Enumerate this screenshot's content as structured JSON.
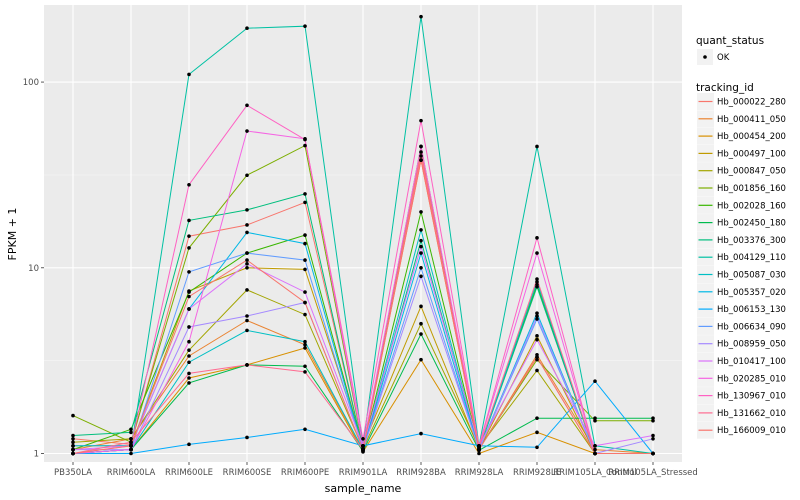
{
  "chart_data": {
    "type": "line",
    "xlabel": "sample_name",
    "ylabel": "FPKM + 1",
    "y_scale": "log10",
    "ylim": [
      0.9,
      260
    ],
    "y_ticks": [
      1,
      10,
      100
    ],
    "y_tick_labels": [
      "1",
      "10",
      "100"
    ],
    "grid": true,
    "legend_position": "right",
    "categories": [
      "PB350LA",
      "RRIM600LA",
      "RRIM600LE",
      "RRIM600SE",
      "RRIM600PE",
      "RRIM901LA",
      "RRIM928BA",
      "RRIM928LA",
      "RRIM928LE",
      "RRIM105LA_Control",
      "RRIM105LA_Stressed"
    ],
    "category_labels": [
      "PB350LA",
      "RRIM600LA",
      "RRIM600LE",
      "RRIM600SE",
      "RRIM600PE",
      "RRIM901LA",
      "RRIM928BA",
      "RRIM928LA",
      "RRIM928LE",
      "RRIM105LA_Control",
      "RRIM105LA_Stressed"
    ],
    "quant_status_legend": {
      "title": "quant_status",
      "items": [
        "OK"
      ]
    },
    "series_legend_title": "tracking_id",
    "series": [
      {
        "name": "Hb_000022_280",
        "color": "#F8766D",
        "values": [
          1.2,
          1.12,
          14.8,
          17.0,
          22.5,
          1.05,
          42.0,
          1.05,
          3.3,
          1.0,
          1.0
        ]
      },
      {
        "name": "Hb_000411_050",
        "color": "#EA8331",
        "values": [
          1.05,
          1.2,
          3.35,
          5.2,
          3.85,
          1.04,
          38.0,
          1.05,
          3.4,
          1.05,
          1.0
        ]
      },
      {
        "name": "Hb_000454_200",
        "color": "#D89000",
        "values": [
          1.0,
          1.05,
          2.55,
          3.0,
          3.7,
          1.02,
          3.2,
          1.0,
          1.3,
          1.0,
          1.0
        ]
      },
      {
        "name": "Hb_000497_100",
        "color": "#C09B00",
        "values": [
          1.1,
          1.1,
          7.5,
          10.0,
          9.8,
          1.1,
          6.2,
          1.05,
          4.3,
          1.0,
          1.0
        ]
      },
      {
        "name": "Hb_000847_050",
        "color": "#A3A500",
        "values": [
          1.15,
          1.2,
          3.6,
          7.6,
          5.6,
          1.06,
          5.0,
          1.08,
          2.8,
          1.0,
          1.0
        ]
      },
      {
        "name": "Hb_001856_160",
        "color": "#7CAE00",
        "values": [
          1.6,
          1.15,
          12.8,
          31.5,
          45.5,
          1.07,
          45.0,
          1.06,
          3.2,
          1.5,
          1.5
        ]
      },
      {
        "name": "Hb_002028_160",
        "color": "#39B600",
        "values": [
          1.05,
          1.35,
          7.4,
          12.0,
          15.0,
          1.06,
          20.0,
          1.06,
          8.1,
          1.0,
          1.0
        ]
      },
      {
        "name": "Hb_002450_180",
        "color": "#00BB4E",
        "values": [
          1.0,
          1.05,
          2.4,
          3.0,
          2.95,
          1.03,
          4.4,
          1.04,
          1.55,
          1.55,
          1.55
        ]
      },
      {
        "name": "Hb_003376_300",
        "color": "#00BF7D",
        "values": [
          1.25,
          1.3,
          18.0,
          20.5,
          25.0,
          1.05,
          14.0,
          1.05,
          7.9,
          1.0,
          1.0
        ]
      },
      {
        "name": "Hb_004129_110",
        "color": "#00C1A3",
        "values": [
          1.0,
          1.05,
          110.0,
          195.0,
          200.0,
          1.1,
          225.0,
          1.1,
          45.0,
          1.1,
          1.0
        ]
      },
      {
        "name": "Hb_005087_030",
        "color": "#00BFC4",
        "values": [
          1.0,
          1.05,
          3.1,
          4.6,
          4.0,
          1.05,
          16.0,
          1.05,
          8.4,
          1.0,
          1.0
        ]
      },
      {
        "name": "Hb_005357_020",
        "color": "#00B8E5",
        "values": [
          1.1,
          1.1,
          6.0,
          15.5,
          13.5,
          1.05,
          12.0,
          1.05,
          5.7,
          1.0,
          1.0
        ]
      },
      {
        "name": "Hb_006153_130",
        "color": "#00ABFD",
        "values": [
          1.0,
          1.0,
          1.12,
          1.22,
          1.35,
          1.1,
          1.28,
          1.1,
          1.08,
          2.45,
          1.0
        ]
      },
      {
        "name": "Hb_006634_090",
        "color": "#619CFF",
        "values": [
          1.0,
          1.05,
          9.5,
          12.0,
          11.0,
          1.05,
          10.0,
          1.05,
          5.3,
          1.0,
          1.0
        ]
      },
      {
        "name": "Hb_008959_050",
        "color": "#A58AFF",
        "values": [
          1.05,
          1.05,
          4.8,
          5.5,
          6.5,
          1.05,
          9.0,
          1.05,
          5.5,
          1.0,
          1.2
        ]
      },
      {
        "name": "Hb_010417_100",
        "color": "#DB72FB",
        "values": [
          1.05,
          1.1,
          6.0,
          10.5,
          7.4,
          1.1,
          13.0,
          1.1,
          4.1,
          1.1,
          1.25
        ]
      },
      {
        "name": "Hb_020285_010",
        "color": "#F564E3",
        "values": [
          1.0,
          1.05,
          4.0,
          54.5,
          49.5,
          1.1,
          45.0,
          1.1,
          12.0,
          1.0,
          1.0
        ]
      },
      {
        "name": "Hb_130967_010",
        "color": "#FF61C3",
        "values": [
          1.0,
          1.1,
          28.0,
          75.0,
          49.0,
          1.2,
          62.0,
          1.1,
          14.5,
          1.0,
          1.0
        ]
      },
      {
        "name": "Hb_131662_010",
        "color": "#FF6C91",
        "values": [
          1.0,
          1.15,
          2.7,
          3.0,
          2.75,
          1.05,
          40.0,
          1.08,
          8.7,
          1.0,
          1.0
        ]
      },
      {
        "name": "Hb_166009_010",
        "color": "#F8766D",
        "values": [
          1.0,
          1.1,
          7.0,
          11.0,
          6.5,
          1.05,
          38.0,
          1.05,
          3.3,
          1.0,
          1.0
        ]
      }
    ]
  }
}
